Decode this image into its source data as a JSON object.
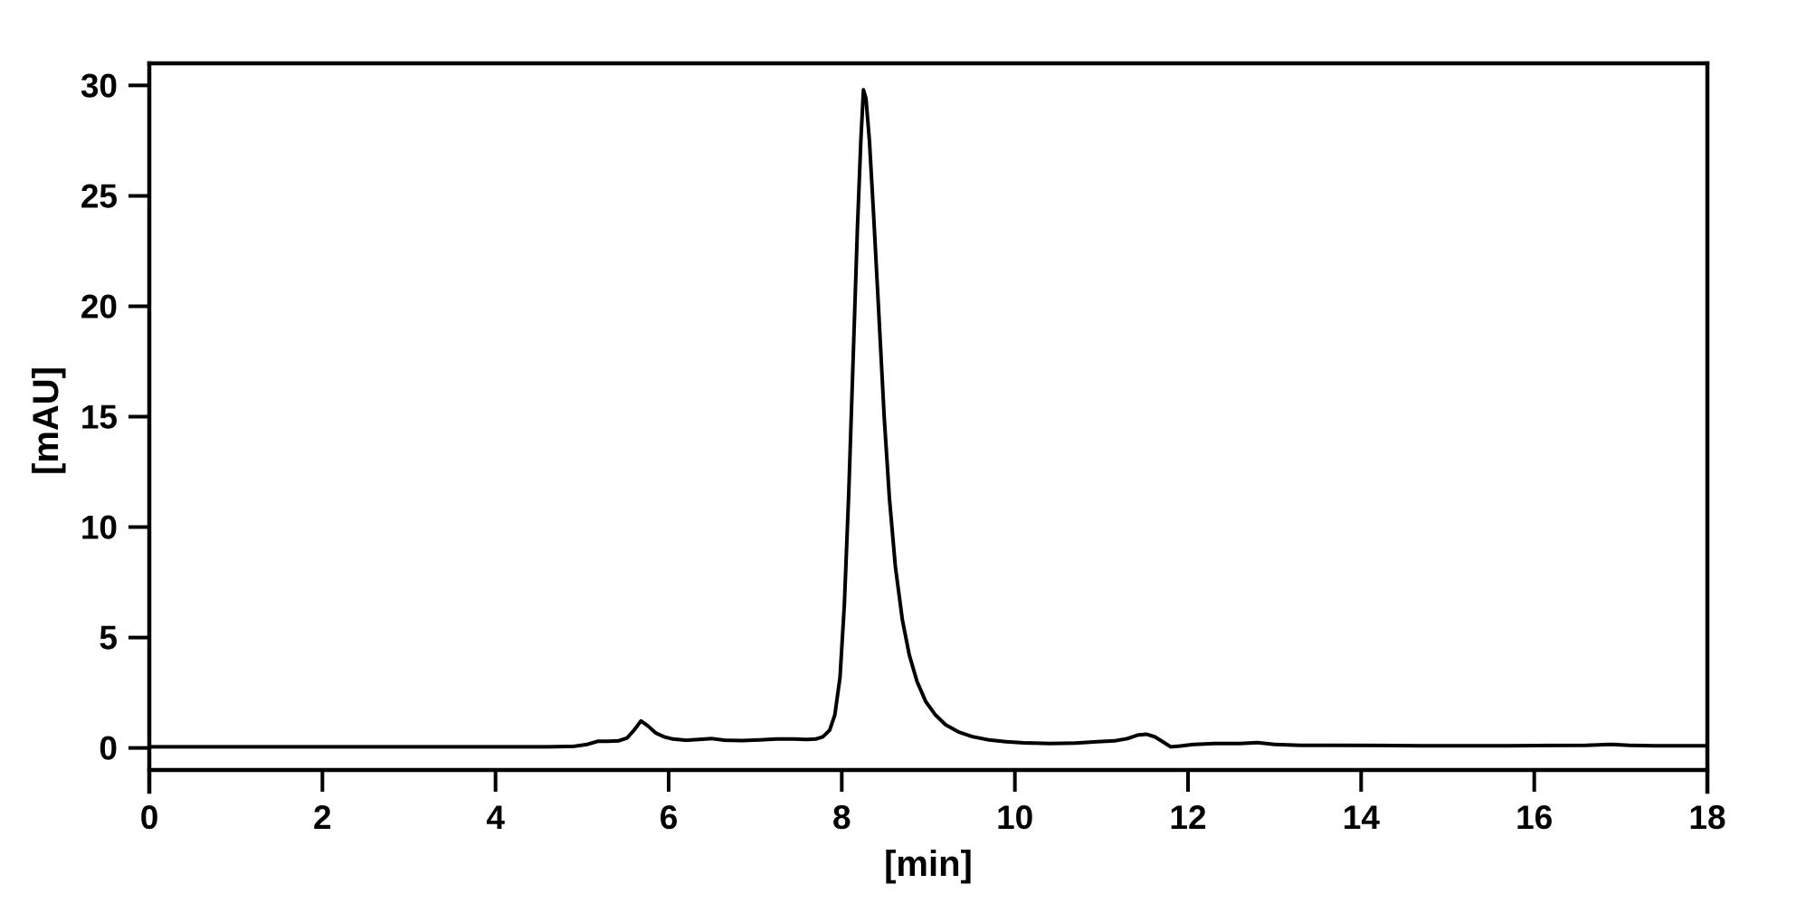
{
  "figure": {
    "background_color": "#ffffff",
    "frame_color": "#000000"
  },
  "chart_data": {
    "type": "line",
    "title": "",
    "xlabel": "[min]",
    "ylabel": "[mAU]",
    "xlim": [
      0,
      18
    ],
    "ylim": [
      -1,
      31
    ],
    "x_ticks": [
      0,
      2,
      4,
      6,
      8,
      10,
      12,
      14,
      16,
      18
    ],
    "y_ticks": [
      0,
      5,
      10,
      15,
      20,
      25,
      30
    ],
    "grid": false,
    "line_color": "#000000",
    "series": [
      {
        "name": "detector-signal",
        "points": [
          [
            0.0,
            0.05
          ],
          [
            0.5,
            0.05
          ],
          [
            1.0,
            0.05
          ],
          [
            1.5,
            0.05
          ],
          [
            2.0,
            0.05
          ],
          [
            2.5,
            0.05
          ],
          [
            3.0,
            0.05
          ],
          [
            3.5,
            0.05
          ],
          [
            4.0,
            0.05
          ],
          [
            4.6,
            0.05
          ],
          [
            4.9,
            0.07
          ],
          [
            5.05,
            0.15
          ],
          [
            5.18,
            0.3
          ],
          [
            5.3,
            0.3
          ],
          [
            5.42,
            0.32
          ],
          [
            5.52,
            0.45
          ],
          [
            5.6,
            0.8
          ],
          [
            5.68,
            1.22
          ],
          [
            5.76,
            1.0
          ],
          [
            5.85,
            0.68
          ],
          [
            5.95,
            0.5
          ],
          [
            6.05,
            0.4
          ],
          [
            6.2,
            0.35
          ],
          [
            6.35,
            0.38
          ],
          [
            6.5,
            0.42
          ],
          [
            6.65,
            0.35
          ],
          [
            6.85,
            0.33
          ],
          [
            7.05,
            0.36
          ],
          [
            7.25,
            0.4
          ],
          [
            7.45,
            0.4
          ],
          [
            7.6,
            0.38
          ],
          [
            7.7,
            0.4
          ],
          [
            7.78,
            0.5
          ],
          [
            7.86,
            0.8
          ],
          [
            7.92,
            1.5
          ],
          [
            7.98,
            3.2
          ],
          [
            8.03,
            6.5
          ],
          [
            8.08,
            11.5
          ],
          [
            8.13,
            17.5
          ],
          [
            8.18,
            23.5
          ],
          [
            8.22,
            27.5
          ],
          [
            8.25,
            29.8
          ],
          [
            8.28,
            29.4
          ],
          [
            8.32,
            27.5
          ],
          [
            8.37,
            24.0
          ],
          [
            8.43,
            19.5
          ],
          [
            8.49,
            15.0
          ],
          [
            8.55,
            11.3
          ],
          [
            8.62,
            8.2
          ],
          [
            8.7,
            5.8
          ],
          [
            8.78,
            4.2
          ],
          [
            8.87,
            3.0
          ],
          [
            8.97,
            2.1
          ],
          [
            9.08,
            1.5
          ],
          [
            9.2,
            1.05
          ],
          [
            9.35,
            0.72
          ],
          [
            9.5,
            0.52
          ],
          [
            9.7,
            0.36
          ],
          [
            9.9,
            0.28
          ],
          [
            10.1,
            0.23
          ],
          [
            10.4,
            0.2
          ],
          [
            10.7,
            0.22
          ],
          [
            10.95,
            0.28
          ],
          [
            11.15,
            0.32
          ],
          [
            11.3,
            0.42
          ],
          [
            11.42,
            0.58
          ],
          [
            11.52,
            0.62
          ],
          [
            11.62,
            0.5
          ],
          [
            11.72,
            0.25
          ],
          [
            11.8,
            0.05
          ],
          [
            11.9,
            0.08
          ],
          [
            12.05,
            0.15
          ],
          [
            12.3,
            0.2
          ],
          [
            12.6,
            0.2
          ],
          [
            12.8,
            0.24
          ],
          [
            13.0,
            0.16
          ],
          [
            13.3,
            0.12
          ],
          [
            13.7,
            0.12
          ],
          [
            14.2,
            0.11
          ],
          [
            14.7,
            0.1
          ],
          [
            15.2,
            0.1
          ],
          [
            15.7,
            0.1
          ],
          [
            16.2,
            0.11
          ],
          [
            16.6,
            0.12
          ],
          [
            16.9,
            0.16
          ],
          [
            17.1,
            0.12
          ],
          [
            17.4,
            0.1
          ],
          [
            17.7,
            0.1
          ],
          [
            18.0,
            0.1
          ]
        ]
      }
    ],
    "peaks": [
      {
        "retention_min": 5.7,
        "height_mAU": 1.2
      },
      {
        "retention_min": 8.25,
        "height_mAU": 29.8
      },
      {
        "retention_min": 11.5,
        "height_mAU": 0.6
      }
    ]
  }
}
